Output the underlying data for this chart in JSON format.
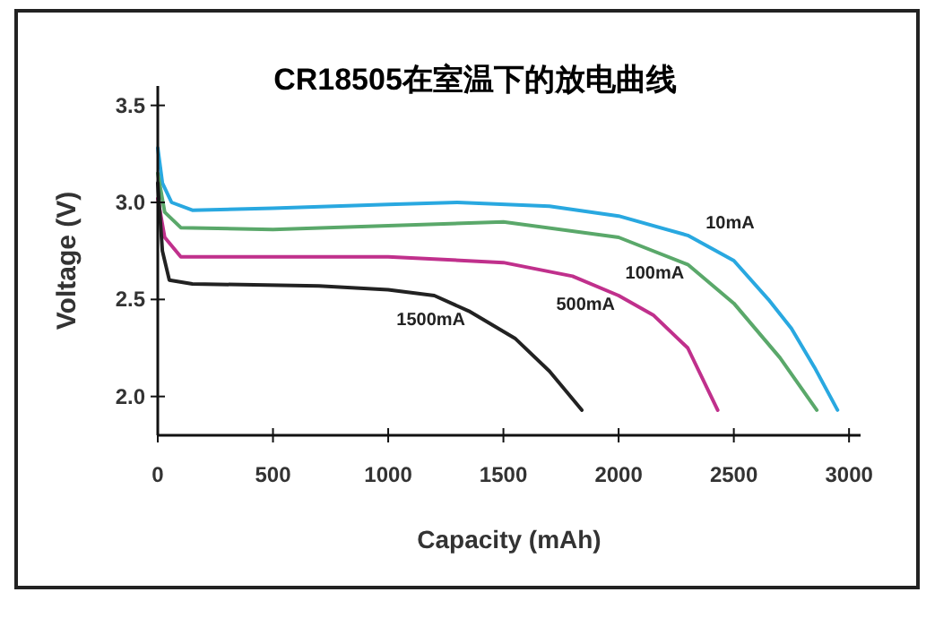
{
  "chart_data": {
    "type": "line",
    "title": "CR18505在室温下的放电曲线",
    "xlabel": "Capacity (mAh)",
    "ylabel": "Voltage (V)",
    "xlim": [
      0,
      3050
    ],
    "ylim": [
      1.8,
      3.6
    ],
    "xticks": [
      0,
      500,
      1000,
      1500,
      2000,
      2500,
      3000
    ],
    "yticks": [
      {
        "value": 2,
        "label": "2.0"
      },
      2.5,
      {
        "value": 3,
        "label": "3.0"
      },
      3.5
    ],
    "grid": false,
    "legend": false,
    "marker": "none",
    "line_style": "solid",
    "series": [
      {
        "name": "10mA",
        "color": "#29a8e0",
        "x": [
          0,
          20,
          60,
          150,
          500,
          1000,
          1300,
          1700,
          2000,
          2300,
          2500,
          2650,
          2750,
          2850,
          2950
        ],
        "values": [
          3.28,
          3.1,
          3.0,
          2.96,
          2.97,
          2.99,
          3.0,
          2.98,
          2.93,
          2.83,
          2.7,
          2.5,
          2.35,
          2.15,
          1.93
        ]
      },
      {
        "name": "100mA",
        "color": "#5aa86a",
        "x": [
          0,
          30,
          100,
          500,
          1000,
          1500,
          2000,
          2300,
          2500,
          2700,
          2860
        ],
        "values": [
          3.15,
          2.95,
          2.87,
          2.86,
          2.88,
          2.9,
          2.82,
          2.68,
          2.48,
          2.2,
          1.93
        ]
      },
      {
        "name": "500mA",
        "color": "#c0308c",
        "x": [
          0,
          30,
          100,
          500,
          1000,
          1500,
          1800,
          2000,
          2150,
          2300,
          2430
        ],
        "values": [
          3.02,
          2.82,
          2.72,
          2.72,
          2.72,
          2.69,
          2.62,
          2.52,
          2.42,
          2.25,
          1.93
        ]
      },
      {
        "name": "1500mA",
        "color": "#222222",
        "x": [
          0,
          20,
          50,
          150,
          700,
          1000,
          1200,
          1350,
          1550,
          1700,
          1840
        ],
        "values": [
          3.1,
          2.75,
          2.6,
          2.58,
          2.57,
          2.55,
          2.52,
          2.44,
          2.3,
          2.13,
          1.93
        ]
      }
    ]
  }
}
